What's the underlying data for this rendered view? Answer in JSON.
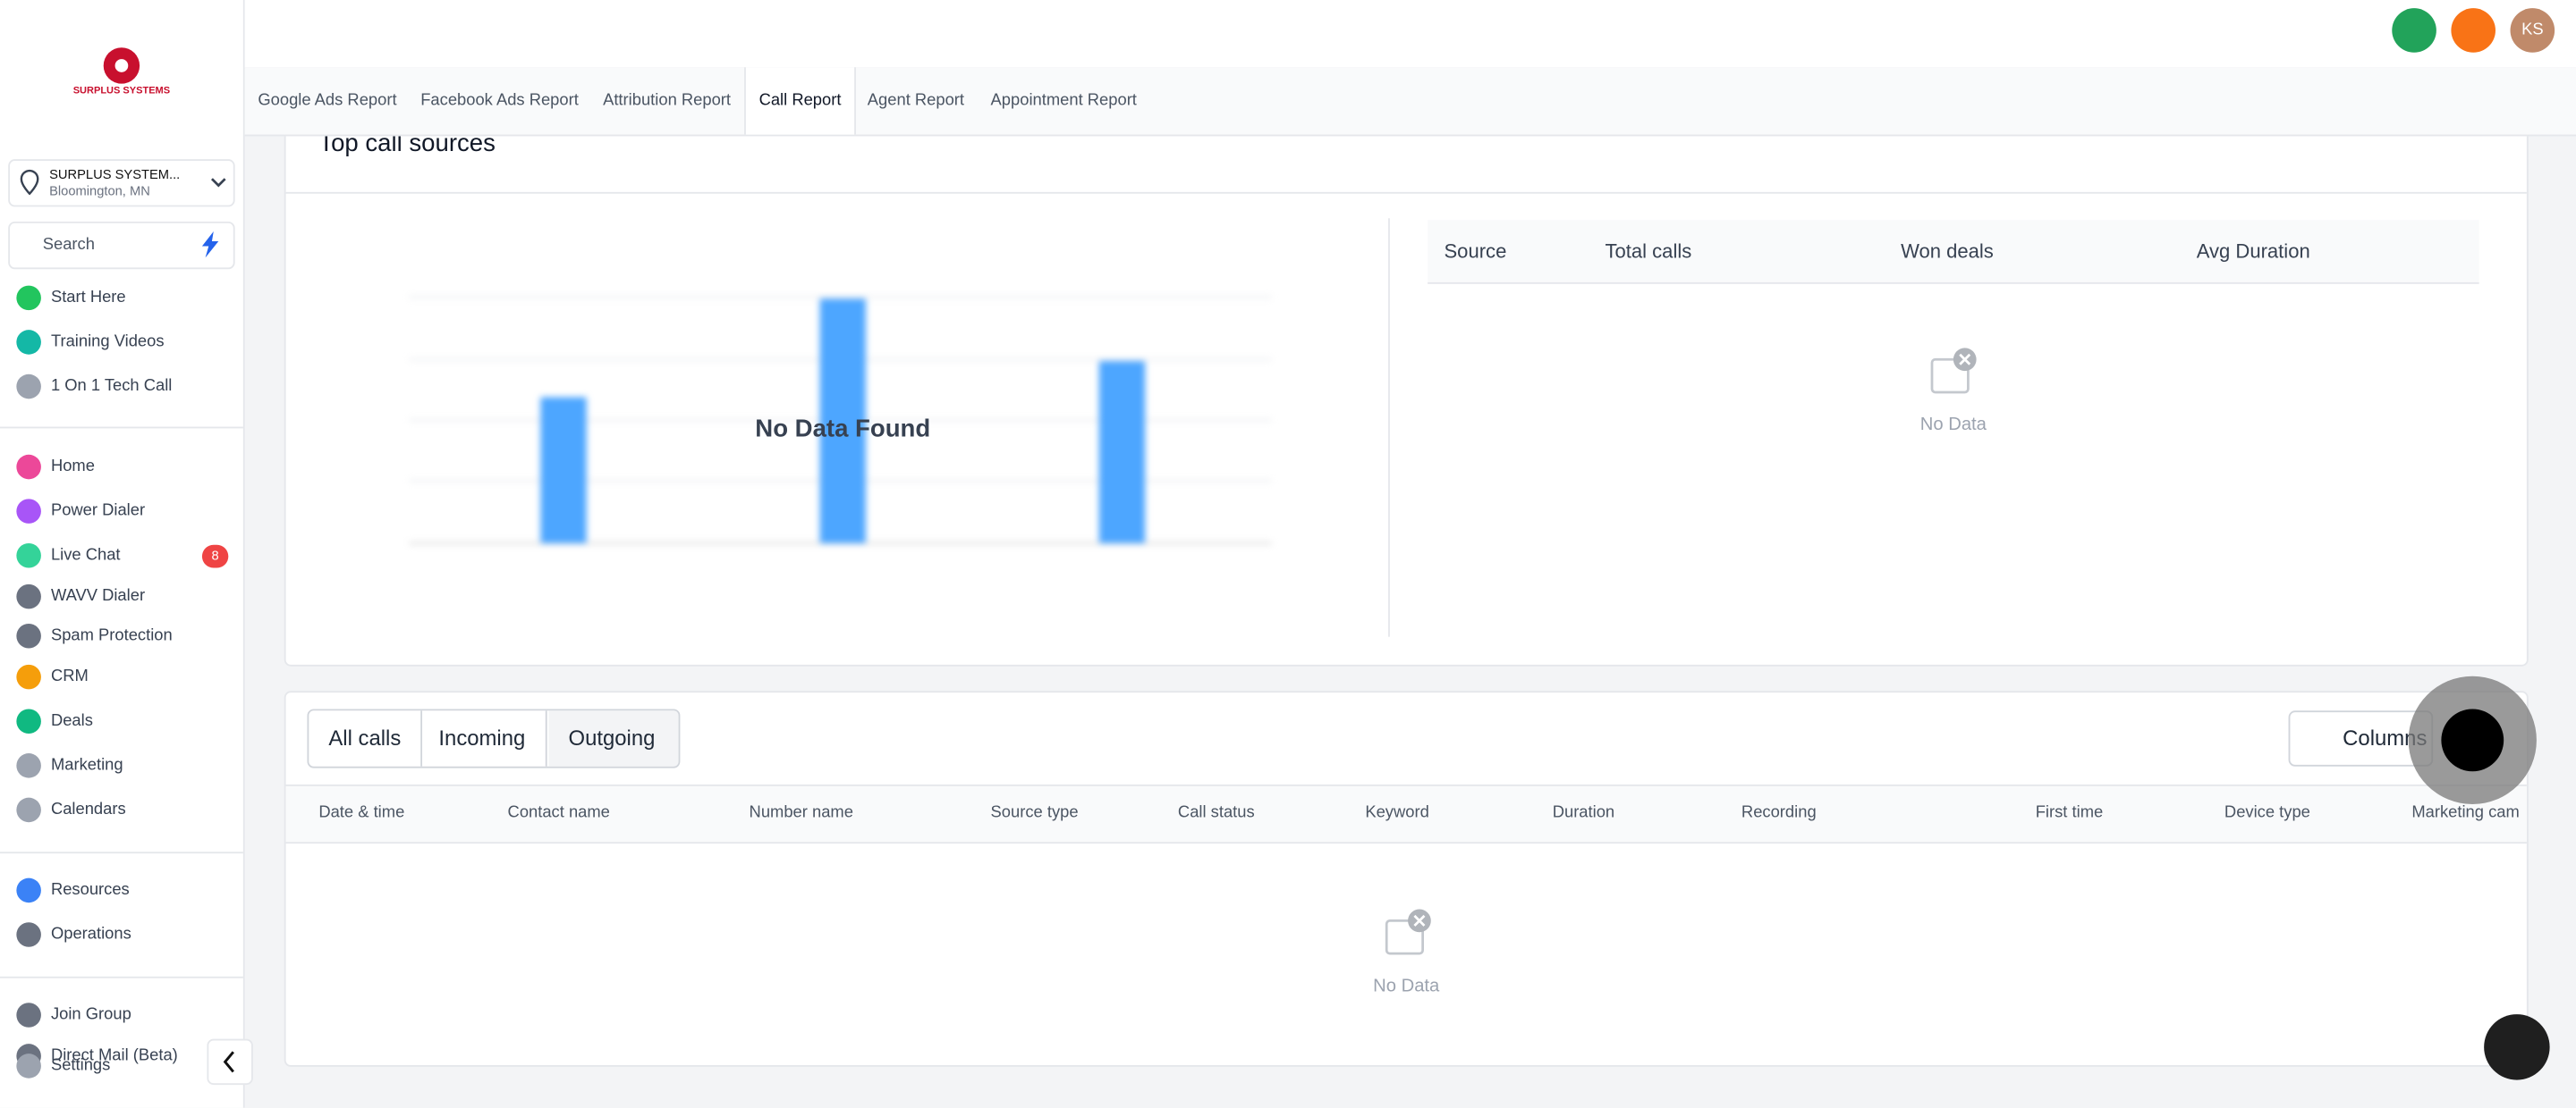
{
  "sidebar": {
    "logo": "SURPLUS SYSTEMS",
    "location": {
      "name": "SURPLUS SYSTEM...",
      "city": "Bloomington, MN"
    },
    "search": "Search",
    "nav_groups": [
      [
        "Start Here",
        "Training Videos",
        "1 On 1 Tech Call"
      ],
      [
        "Home",
        "Power Dialer",
        "Live Chat",
        "WAVV Dialer",
        "Spam Protection",
        "CRM",
        "Deals",
        "Marketing",
        "Calendars"
      ],
      [
        "Resources",
        "Operations"
      ],
      [
        "Join Group",
        "Direct Mail (Beta)",
        "Settings"
      ]
    ],
    "live_chat_badge": 8
  },
  "header": {
    "avatar": "KS"
  },
  "tabs": {
    "items": [
      "Google Ads Report",
      "Facebook Ads Report",
      "Attribution Report",
      "Call Report",
      "Agent Report",
      "Appointment Report"
    ],
    "active": "Call Report"
  },
  "top_sources": {
    "title": "Top call sources",
    "chart_message": "No Data Found",
    "columns": [
      "Source",
      "Total calls",
      "Won deals",
      "Avg Duration"
    ],
    "empty": "No Data"
  },
  "calls": {
    "filters": [
      "All calls",
      "Incoming",
      "Outgoing"
    ],
    "columns_button": "Columns",
    "columns": [
      "Date & time",
      "Contact name",
      "Number name",
      "Source type",
      "Call status",
      "Keyword",
      "Duration",
      "Recording",
      "First time",
      "Device type",
      "Marketing cam"
    ],
    "empty": "No Data"
  }
}
